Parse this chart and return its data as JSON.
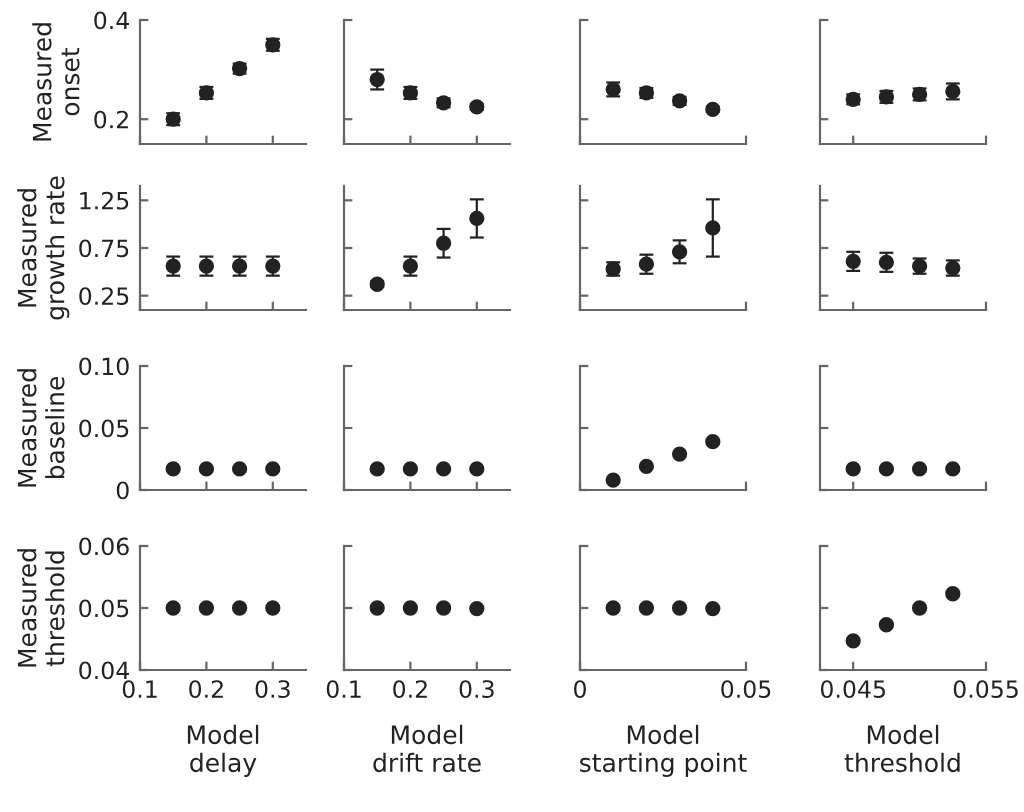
{
  "chart_data": [
    {
      "type": "scatter",
      "ylabel": "Measured\nonset",
      "x": [
        0.15,
        0.2,
        0.25,
        0.3
      ],
      "xlim": [
        0.1,
        0.35
      ],
      "xticks": [
        0.1,
        0.2,
        0.3
      ],
      "ylim": [
        0.15,
        0.4
      ],
      "yticks": [
        0.2,
        0.4
      ],
      "tick_labels": "y",
      "marker": "circle",
      "series": [
        {
          "color": "#222222",
          "values": [
            0.2,
            0.253,
            0.302,
            0.35
          ],
          "errors": [
            0.012,
            0.012,
            0.01,
            0.012
          ]
        }
      ]
    },
    {
      "type": "scatter",
      "x": [
        0.15,
        0.2,
        0.25,
        0.3
      ],
      "xlim": [
        0.1,
        0.35
      ],
      "xticks": [
        0.1,
        0.2,
        0.3
      ],
      "ylim": [
        0.15,
        0.4
      ],
      "yticks": [
        0.2,
        0.4
      ],
      "tick_labels": false,
      "marker": "circle",
      "series": [
        {
          "color": "#222222",
          "values": [
            0.28,
            0.253,
            0.233,
            0.225
          ],
          "errors": [
            0.02,
            0.012,
            0.009,
            0.006
          ]
        }
      ]
    },
    {
      "type": "scatter",
      "x": [
        0.01,
        0.02,
        0.03,
        0.04
      ],
      "xlim": [
        0,
        0.05
      ],
      "xticks": [
        0,
        0.05
      ],
      "ylim": [
        0.15,
        0.4
      ],
      "yticks": [
        0.2,
        0.4
      ],
      "tick_labels": false,
      "marker": "circle",
      "series": [
        {
          "color": "#222222",
          "values": [
            0.26,
            0.253,
            0.237,
            0.22
          ],
          "errors": [
            0.014,
            0.01,
            0.008,
            0.005
          ]
        }
      ]
    },
    {
      "type": "scatter",
      "x": [
        0.045,
        0.0475,
        0.05,
        0.0525
      ],
      "xlim": [
        0.0425,
        0.055
      ],
      "xticks": [
        0.045,
        0.055
      ],
      "ylim": [
        0.15,
        0.4
      ],
      "yticks": [
        0.2,
        0.4
      ],
      "tick_labels": false,
      "marker": "circle",
      "series": [
        {
          "color": "#222222",
          "values": [
            0.24,
            0.245,
            0.25,
            0.256
          ],
          "errors": [
            0.01,
            0.012,
            0.012,
            0.016
          ]
        }
      ]
    },
    {
      "type": "scatter",
      "ylabel": "Measured\ngrowth rate",
      "x": [
        0.15,
        0.2,
        0.25,
        0.3
      ],
      "xlim": [
        0.1,
        0.35
      ],
      "xticks": [
        0.1,
        0.2,
        0.3
      ],
      "ylim": [
        0.1,
        1.4
      ],
      "yticks": [
        0.25,
        0.75,
        1.25
      ],
      "tick_labels": "y",
      "marker": "circle",
      "series": [
        {
          "color": "#222222",
          "values": [
            0.56,
            0.56,
            0.56,
            0.56
          ],
          "errors": [
            0.1,
            0.1,
            0.1,
            0.1
          ]
        }
      ]
    },
    {
      "type": "scatter",
      "x": [
        0.15,
        0.2,
        0.25,
        0.3
      ],
      "xlim": [
        0.1,
        0.35
      ],
      "xticks": [
        0.1,
        0.2,
        0.3
      ],
      "ylim": [
        0.1,
        1.4
      ],
      "yticks": [
        0.25,
        0.75,
        1.25
      ],
      "tick_labels": false,
      "marker": "circle",
      "series": [
        {
          "color": "#222222",
          "values": [
            0.37,
            0.56,
            0.8,
            1.06
          ],
          "errors": [
            0.03,
            0.1,
            0.15,
            0.2
          ]
        }
      ]
    },
    {
      "type": "scatter",
      "x": [
        0.01,
        0.02,
        0.03,
        0.04
      ],
      "xlim": [
        0,
        0.05
      ],
      "xticks": [
        0,
        0.05
      ],
      "ylim": [
        0.1,
        1.4
      ],
      "yticks": [
        0.25,
        0.75,
        1.25
      ],
      "tick_labels": false,
      "marker": "circle",
      "series": [
        {
          "color": "#222222",
          "values": [
            0.53,
            0.58,
            0.71,
            0.96
          ],
          "errors": [
            0.07,
            0.1,
            0.12,
            0.3
          ]
        }
      ]
    },
    {
      "type": "scatter",
      "x": [
        0.045,
        0.0475,
        0.05,
        0.0525
      ],
      "xlim": [
        0.0425,
        0.055
      ],
      "xticks": [
        0.045,
        0.055
      ],
      "ylim": [
        0.1,
        1.4
      ],
      "yticks": [
        0.25,
        0.75,
        1.25
      ],
      "tick_labels": false,
      "marker": "circle",
      "series": [
        {
          "color": "#222222",
          "values": [
            0.61,
            0.6,
            0.56,
            0.54
          ],
          "errors": [
            0.1,
            0.1,
            0.08,
            0.08
          ]
        }
      ]
    },
    {
      "type": "scatter",
      "ylabel": "Measured\nbaseline",
      "x": [
        0.15,
        0.2,
        0.25,
        0.3
      ],
      "xlim": [
        0.1,
        0.35
      ],
      "xticks": [
        0.1,
        0.2,
        0.3
      ],
      "ylim": [
        0,
        0.1
      ],
      "yticks": [
        0,
        0.05,
        {
          "value": 0.1,
          "label": "0.10"
        }
      ],
      "tick_labels": "y",
      "marker": "circle",
      "series": [
        {
          "color": "#222222",
          "values": [
            0.017,
            0.017,
            0.017,
            0.017
          ]
        }
      ]
    },
    {
      "type": "scatter",
      "x": [
        0.15,
        0.2,
        0.25,
        0.3
      ],
      "xlim": [
        0.1,
        0.35
      ],
      "xticks": [
        0.1,
        0.2,
        0.3
      ],
      "ylim": [
        0,
        0.1
      ],
      "yticks": [
        0,
        0.05,
        0.1
      ],
      "tick_labels": false,
      "marker": "circle",
      "series": [
        {
          "color": "#222222",
          "values": [
            0.017,
            0.017,
            0.017,
            0.017
          ]
        }
      ]
    },
    {
      "type": "scatter",
      "x": [
        0.01,
        0.02,
        0.03,
        0.04
      ],
      "xlim": [
        0,
        0.05
      ],
      "xticks": [
        0,
        0.05
      ],
      "ylim": [
        0,
        0.1
      ],
      "yticks": [
        0,
        0.05,
        0.1
      ],
      "tick_labels": false,
      "marker": "circle",
      "series": [
        {
          "color": "#222222",
          "values": [
            0.008,
            0.019,
            0.029,
            0.039
          ]
        }
      ]
    },
    {
      "type": "scatter",
      "x": [
        0.045,
        0.0475,
        0.05,
        0.0525
      ],
      "xlim": [
        0.0425,
        0.055
      ],
      "xticks": [
        0.045,
        0.055
      ],
      "ylim": [
        0,
        0.1
      ],
      "yticks": [
        0,
        0.05,
        0.1
      ],
      "tick_labels": false,
      "marker": "circle",
      "series": [
        {
          "color": "#222222",
          "values": [
            0.017,
            0.017,
            0.017,
            0.017
          ]
        }
      ]
    },
    {
      "type": "scatter",
      "ylabel": "Measured\nthreshold",
      "xlabel": "Model\ndelay",
      "x": [
        0.15,
        0.2,
        0.25,
        0.3
      ],
      "xlim": [
        0.1,
        0.35
      ],
      "xticks": [
        0.1,
        0.2,
        0.3
      ],
      "ylim": [
        0.04,
        0.06
      ],
      "yticks": [
        0.04,
        0.05,
        0.06
      ],
      "marker": "circle",
      "series": [
        {
          "color": "#222222",
          "values": [
            0.05,
            0.05,
            0.05,
            0.05
          ]
        }
      ]
    },
    {
      "type": "scatter",
      "xlabel": "Model\ndrift rate",
      "x": [
        0.15,
        0.2,
        0.25,
        0.3
      ],
      "xlim": [
        0.1,
        0.35
      ],
      "xticks": [
        0.1,
        0.2,
        0.3
      ],
      "ylim": [
        0.04,
        0.06
      ],
      "yticks": [
        0.04,
        0.05,
        0.06
      ],
      "tick_labels": "x",
      "marker": "circle",
      "series": [
        {
          "color": "#222222",
          "values": [
            0.05,
            0.05,
            0.05,
            0.0499
          ]
        }
      ]
    },
    {
      "type": "scatter",
      "xlabel": "Model\nstarting point",
      "x": [
        0.01,
        0.02,
        0.03,
        0.04
      ],
      "xlim": [
        0,
        0.05
      ],
      "xticks": [
        0,
        0.05
      ],
      "ylim": [
        0.04,
        0.06
      ],
      "yticks": [
        0.04,
        0.05,
        0.06
      ],
      "tick_labels": "x",
      "marker": "circle",
      "series": [
        {
          "color": "#222222",
          "values": [
            0.05,
            0.05,
            0.05,
            0.0499
          ]
        }
      ]
    },
    {
      "type": "scatter",
      "xlabel": "Model\nthreshold",
      "x": [
        0.045,
        0.0475,
        0.05,
        0.0525
      ],
      "xlim": [
        0.0425,
        0.055
      ],
      "xticks": [
        0.045,
        0.055
      ],
      "ylim": [
        0.04,
        0.06
      ],
      "yticks": [
        0.04,
        0.05,
        0.06
      ],
      "tick_labels": "x",
      "marker": "circle",
      "series": [
        {
          "color": "#222222",
          "values": [
            0.0447,
            0.0473,
            0.05,
            0.0523
          ]
        }
      ]
    }
  ]
}
